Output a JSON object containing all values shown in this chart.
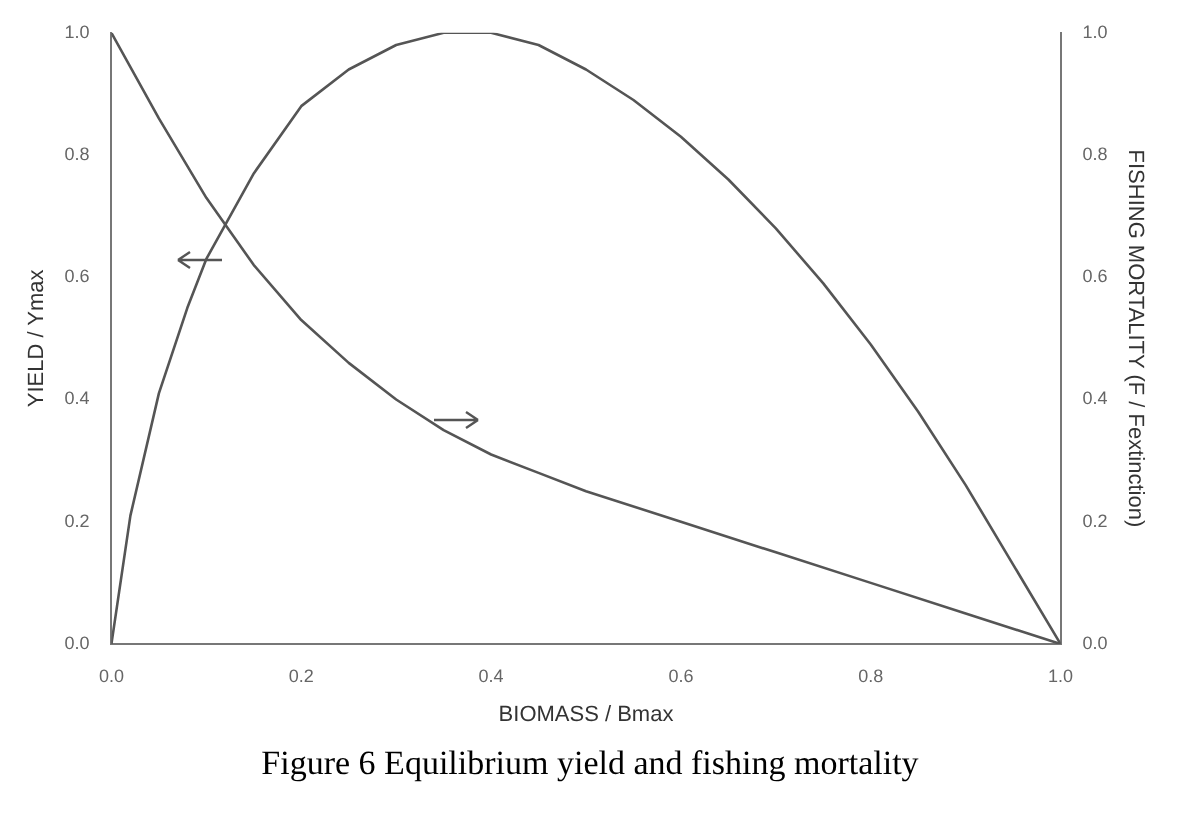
{
  "chart_data": {
    "type": "line",
    "xlabel": "BIOMASS / Bmax",
    "ylabel": "YIELD / Ymax",
    "y2label": "FISHING MORTALITY (F / Fextinction)",
    "annotations": [
      "Figure 6 Equilibrium yield and fishing mortality"
    ],
    "series": [
      {
        "color": "#555555",
        "x": [
          0,
          0.02,
          0.05,
          0.08,
          0.1,
          0.15,
          0.2,
          0.25,
          0.3,
          0.35,
          0.37,
          0.4,
          0.45,
          0.5,
          0.55,
          0.6,
          0.65,
          0.7,
          0.75,
          0.8,
          0.85,
          0.9,
          0.95,
          1.0
        ],
        "values": [
          0,
          0.21,
          0.41,
          0.55,
          0.63,
          0.77,
          0.88,
          0.94,
          0.98,
          1.0,
          1.0,
          1.0,
          0.98,
          0.94,
          0.89,
          0.83,
          0.76,
          0.68,
          0.59,
          0.49,
          0.38,
          0.26,
          0.13,
          0
        ]
      },
      {
        "color": "#555555",
        "axis": "y2",
        "x": [
          0,
          0.05,
          0.1,
          0.15,
          0.2,
          0.25,
          0.3,
          0.35,
          0.4,
          0.45,
          0.5,
          0.6,
          0.7,
          0.8,
          0.9,
          1.0
        ],
        "values": [
          1.0,
          0.86,
          0.73,
          0.62,
          0.53,
          0.46,
          0.4,
          0.35,
          0.31,
          0.28,
          0.25,
          0.2,
          0.15,
          0.1,
          0.05,
          0
        ]
      }
    ],
    "xlim": [
      0,
      1
    ],
    "xticks": [
      {
        "value": 0,
        "label": "0.0"
      },
      0.2,
      0.4,
      0.6,
      0.8,
      {
        "value": 1,
        "label": "1.0"
      }
    ],
    "ylim": [
      0,
      1
    ],
    "yticks": [
      {
        "value": 0,
        "label": "0.0"
      },
      0.2,
      0.4,
      0.6,
      0.8,
      {
        "value": 1,
        "label": "1.0"
      }
    ],
    "y2lim": [
      0,
      1
    ],
    "y2ticks": [
      {
        "value": 0,
        "label": "0.0"
      },
      0.2,
      0.4,
      0.6,
      0.8,
      {
        "value": 1,
        "label": "1.0"
      }
    ],
    "grid": false,
    "legend": false,
    "marker": "none",
    "line_style": "solid"
  }
}
